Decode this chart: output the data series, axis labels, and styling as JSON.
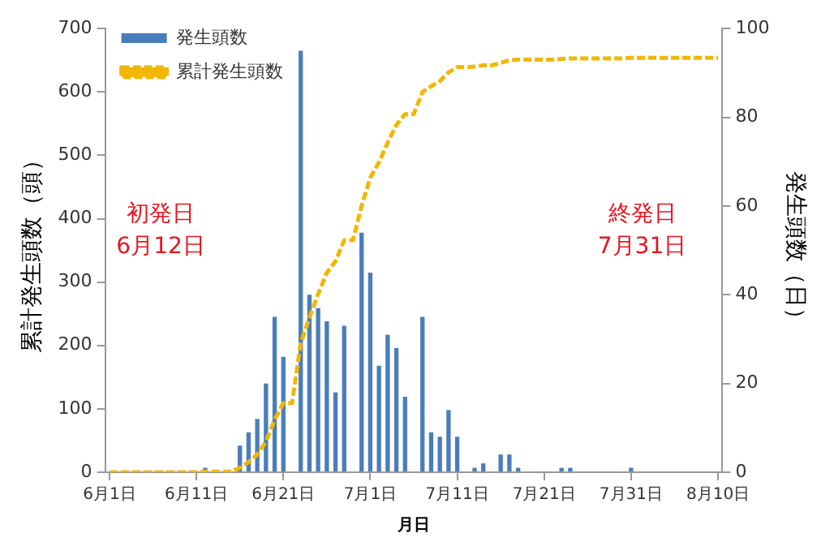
{
  "chart_data": {
    "type": "bar",
    "xlabel": "月日",
    "ylabel": "累計発生頭数（頭）",
    "y2label": "発生頭数（日）",
    "categories": [
      "6月1日",
      null,
      null,
      null,
      null,
      null,
      null,
      null,
      null,
      null,
      "6月11日",
      null,
      null,
      null,
      null,
      null,
      null,
      null,
      null,
      null,
      "6月21日",
      null,
      null,
      null,
      null,
      null,
      null,
      null,
      null,
      null,
      "7月1日",
      null,
      null,
      null,
      null,
      null,
      null,
      null,
      null,
      null,
      "7月11日",
      null,
      null,
      null,
      null,
      null,
      null,
      null,
      null,
      null,
      "7月21日",
      null,
      null,
      null,
      null,
      null,
      null,
      null,
      null,
      null,
      "7月31日",
      null,
      null,
      null,
      null,
      null,
      null,
      null,
      null,
      null,
      "8月10日"
    ],
    "series": [
      {
        "name": "発生頭数",
        "axis": "y2",
        "color": "#4a7ebb",
        "values": [
          null,
          null,
          null,
          null,
          null,
          null,
          null,
          null,
          null,
          null,
          null,
          1,
          null,
          null,
          null,
          6,
          9,
          12,
          20,
          35,
          26,
          null,
          95,
          40,
          37,
          34,
          18,
          33,
          null,
          54,
          45,
          24,
          31,
          28,
          17,
          null,
          35,
          9,
          8,
          14,
          8,
          null,
          1,
          2,
          null,
          4,
          4,
          1,
          null,
          null,
          null,
          null,
          1,
          1,
          null,
          null,
          null,
          null,
          null,
          null,
          1,
          null,
          null,
          null,
          null,
          null,
          null,
          null,
          null,
          null,
          null
        ]
      },
      {
        "name": "累計発生頭数",
        "type": "line",
        "axis": "y",
        "color": "#f2b705",
        "line_style": "dashed",
        "values": [
          0,
          0,
          0,
          0,
          0,
          0,
          0,
          0,
          0,
          0,
          0,
          1,
          1,
          1,
          1,
          7,
          16,
          28,
          48,
          83,
          109,
          109,
          204,
          244,
          281,
          315,
          333,
          366,
          366,
          420,
          465,
          489,
          520,
          548,
          565,
          565,
          600,
          609,
          617,
          631,
          639,
          639,
          640,
          642,
          642,
          646,
          650,
          651,
          651,
          651,
          651,
          651,
          652,
          653,
          653,
          653,
          653,
          653,
          653,
          653,
          654,
          654,
          654,
          654,
          654,
          654,
          654,
          654,
          654,
          654,
          654
        ]
      }
    ],
    "ylim": [
      0,
      700
    ],
    "yticks": [
      0,
      100,
      200,
      300,
      400,
      500,
      600,
      700
    ],
    "y2lim": [
      0,
      100
    ],
    "y2ticks": [
      0,
      20,
      40,
      60,
      80,
      100
    ],
    "grid": false,
    "legend": "top left",
    "marker": "none",
    "annotations": [
      "初発日\n6月12日",
      "終発日\n7月31日"
    ]
  }
}
